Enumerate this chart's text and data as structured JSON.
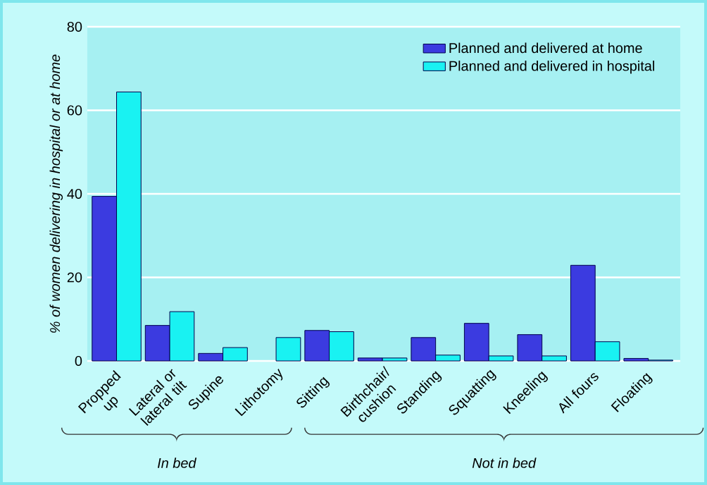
{
  "chart_data": {
    "type": "bar",
    "ylabel": "% of women delivering in hospital or at home",
    "categories": [
      "Propped up",
      "Lateral or lateral tilt",
      "Supine",
      "Lithotomy",
      "Sitting",
      "Birthchair/ cushion",
      "Standing",
      "Squatting",
      "Kneeling",
      "All fours",
      "Floating"
    ],
    "series": [
      {
        "name": "Planned and delivered at home",
        "color": "#3b3be0",
        "values": [
          39.4,
          8.5,
          1.8,
          null,
          7.3,
          0.7,
          5.6,
          9.0,
          6.3,
          22.9,
          0.6
        ]
      },
      {
        "name": "Planned and delivered in hospital",
        "color": "#19f2f2",
        "values": [
          64.4,
          11.8,
          3.2,
          5.6,
          7.0,
          0.7,
          1.4,
          1.2,
          1.2,
          4.6,
          0.2
        ]
      }
    ],
    "ylim": [
      0,
      80
    ],
    "yticks": [
      0,
      20,
      40,
      60,
      80
    ],
    "grid": "y",
    "legend": "top right",
    "annotations": [
      "In bed",
      "Not in bed"
    ]
  }
}
